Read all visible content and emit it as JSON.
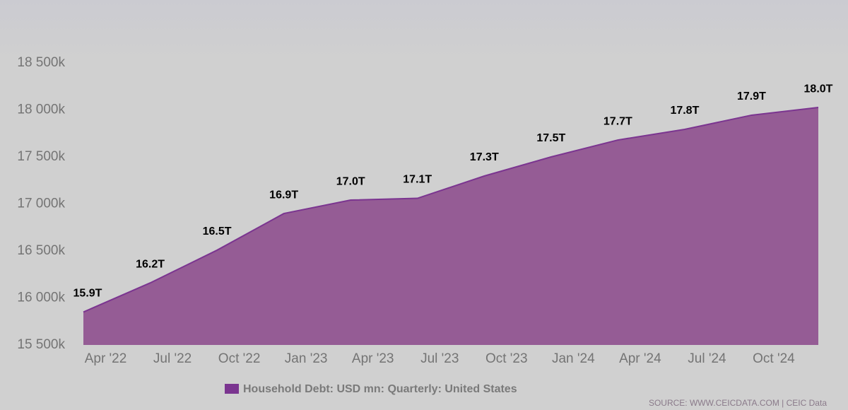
{
  "chart_data": {
    "type": "area",
    "x": [
      "2022-03",
      "2022-06",
      "2022-09",
      "2022-12",
      "2023-03",
      "2023-06",
      "2023-09",
      "2023-12",
      "2024-03",
      "2024-06",
      "2024-09",
      "2024-12"
    ],
    "series": [
      {
        "name": "Household Debt: USD mn: Quarterly: United States",
        "color": "#7b3590",
        "area_color": "#955c95",
        "values": [
          15850000,
          16160000,
          16508000,
          16898000,
          17041000,
          17060000,
          17297000,
          17500000,
          17680000,
          17793000,
          17944000,
          18026000
        ],
        "value_labels": [
          "15.9T",
          "16.2T",
          "16.5T",
          "16.9T",
          "17.0T",
          "17.1T",
          "17.3T",
          "17.5T",
          "17.7T",
          "17.8T",
          "17.9T",
          "18.0T"
        ]
      }
    ],
    "xlim": [
      "2022-03",
      "2024-12"
    ],
    "xticks": [
      {
        "value": "2022-04",
        "label": "Apr '22"
      },
      {
        "value": "2022-07",
        "label": "Jul '22"
      },
      {
        "value": "2022-10",
        "label": "Oct '22"
      },
      {
        "value": "2023-01",
        "label": "Jan '23"
      },
      {
        "value": "2023-04",
        "label": "Apr '23"
      },
      {
        "value": "2023-07",
        "label": "Jul '23"
      },
      {
        "value": "2023-10",
        "label": "Oct '23"
      },
      {
        "value": "2024-01",
        "label": "Jan '24"
      },
      {
        "value": "2024-04",
        "label": "Apr '24"
      },
      {
        "value": "2024-07",
        "label": "Jul '24"
      },
      {
        "value": "2024-10",
        "label": "Oct '24"
      }
    ],
    "ylim": [
      15500000,
      18500000
    ],
    "yticks": [
      {
        "value": 15500000,
        "label": "15 500k"
      },
      {
        "value": 16000000,
        "label": "16 000k"
      },
      {
        "value": 16500000,
        "label": "16 500k"
      },
      {
        "value": 17000000,
        "label": "17 000k"
      },
      {
        "value": 17500000,
        "label": "17 500k"
      },
      {
        "value": 18000000,
        "label": "18 000k"
      },
      {
        "value": 18500000,
        "label": "18 500k"
      }
    ],
    "grid": false,
    "legend": "bottom",
    "source": "SOURCE: WWW.CEICDATA.COM | CEIC Data"
  }
}
